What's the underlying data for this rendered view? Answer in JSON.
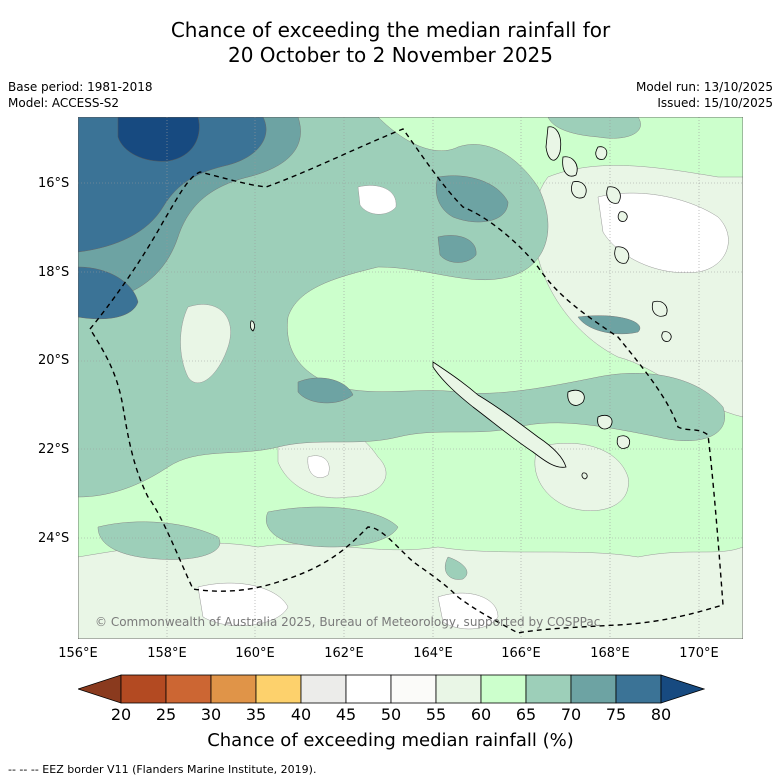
{
  "title": {
    "line1": "Chance of exceeding the median rainfall for",
    "line2": "20 October to 2 November 2025"
  },
  "meta": {
    "base_period": "Base period: 1981-2018",
    "model": "Model: ACCESS-S2",
    "model_run": "Model run: 13/10/2025",
    "issued": "Issued: 15/10/2025"
  },
  "map": {
    "lat_labels": [
      "16°S",
      "18°S",
      "20°S",
      "22°S",
      "24°S"
    ],
    "lon_labels": [
      "156°E",
      "158°E",
      "160°E",
      "162°E",
      "164°E",
      "166°E",
      "168°E",
      "170°E"
    ],
    "copyright": "© Commonwealth of Australia 2025, Bureau of Meteorology, supported by COSPPac"
  },
  "colorbar": {
    "ticks": [
      "20",
      "25",
      "30",
      "35",
      "40",
      "45",
      "50",
      "55",
      "60",
      "65",
      "70",
      "75",
      "80"
    ],
    "colors": [
      "#8a3a1e",
      "#b34a22",
      "#cc6633",
      "#e09448",
      "#fdd16c",
      "#ececea",
      "#ffffff",
      "#fbfbf9",
      "#e9f6e6",
      "#ccffcc",
      "#9dcfb9",
      "#6da3a3",
      "#3b7396",
      "#174a80"
    ],
    "label": "Chance of exceeding median rainfall (%)"
  },
  "footnote": "--  --  -- EEZ border V11 (Flanders Marine Institute, 2019)."
}
